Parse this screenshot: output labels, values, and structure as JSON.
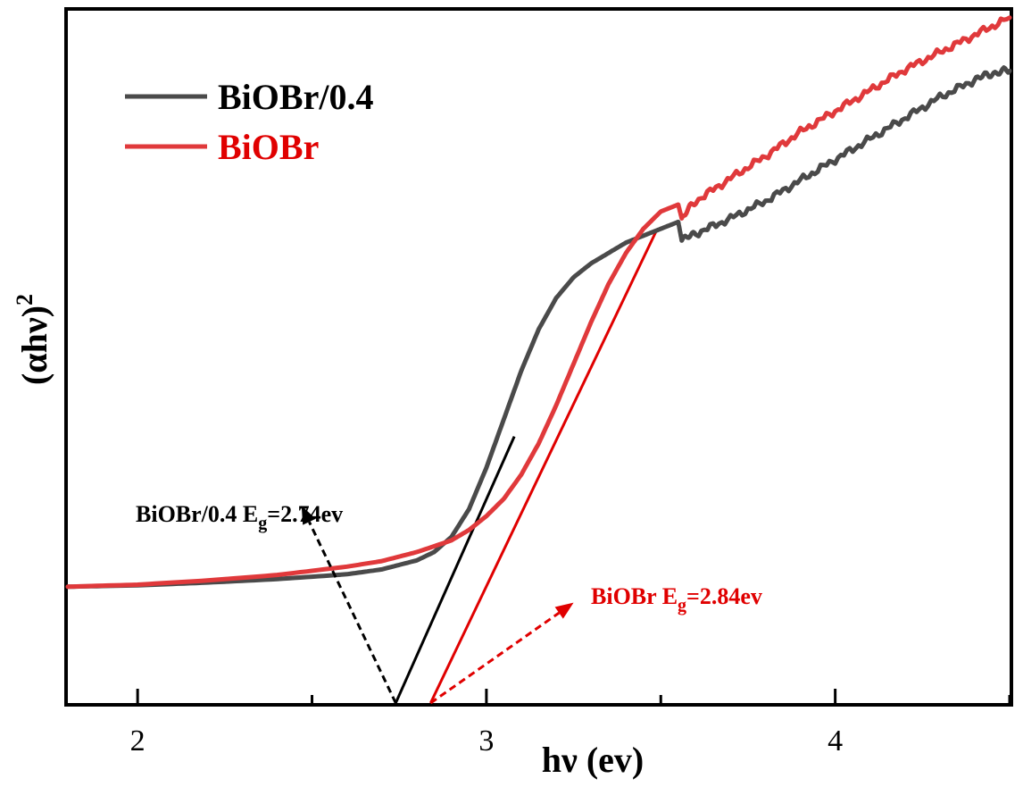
{
  "chart_data": {
    "type": "line",
    "title": "",
    "xlabel": "hν (ev)",
    "ylabel": "(αhν)",
    "ylabel_sup": "2",
    "xlim": [
      1.8,
      4.5
    ],
    "ylim": [
      0,
      100
    ],
    "xticks": [
      2,
      3,
      4
    ],
    "xtick_labels": [
      "2",
      "3",
      "4"
    ],
    "yticks_shown": false,
    "grid": false,
    "legend_position": "top-left",
    "series": [
      {
        "name": "BiOBr/0.4",
        "color": "#4a4a4a",
        "x": [
          1.8,
          2.0,
          2.2,
          2.4,
          2.6,
          2.7,
          2.8,
          2.85,
          2.9,
          2.95,
          3.0,
          3.05,
          3.1,
          3.15,
          3.2,
          3.25,
          3.3,
          3.35,
          3.4,
          3.45,
          3.5,
          3.55,
          3.56,
          3.6,
          3.7,
          3.8,
          3.9,
          4.0,
          4.1,
          4.2,
          4.3,
          4.4,
          4.45,
          4.5
        ],
        "y": [
          16.8,
          17.0,
          17.4,
          17.9,
          18.6,
          19.3,
          20.6,
          21.8,
          24.0,
          28.0,
          34.0,
          41.0,
          48.0,
          54.0,
          58.5,
          61.5,
          63.5,
          65.0,
          66.5,
          67.5,
          68.5,
          69.5,
          66.8,
          67.8,
          70.0,
          72.5,
          75.5,
          78.5,
          81.5,
          84.5,
          87.5,
          90.0,
          91.0,
          91.3
        ]
      },
      {
        "name": "BiOBr",
        "color": "#e0393b",
        "x": [
          1.8,
          2.0,
          2.2,
          2.4,
          2.6,
          2.7,
          2.8,
          2.9,
          2.95,
          3.0,
          3.05,
          3.1,
          3.15,
          3.2,
          3.25,
          3.3,
          3.35,
          3.4,
          3.45,
          3.5,
          3.55,
          3.56,
          3.6,
          3.7,
          3.8,
          3.9,
          4.0,
          4.1,
          4.2,
          4.3,
          4.4,
          4.5
        ],
        "y": [
          16.8,
          17.1,
          17.7,
          18.5,
          19.7,
          20.5,
          21.8,
          23.5,
          25.0,
          27.0,
          29.5,
          33.0,
          37.5,
          43.0,
          49.0,
          55.0,
          60.5,
          65.0,
          68.5,
          71.0,
          72.0,
          70.0,
          72.5,
          75.8,
          79.0,
          82.5,
          85.5,
          88.5,
          91.5,
          94.0,
          96.5,
          99.0
        ]
      }
    ],
    "tangent_lines": [
      {
        "series": "BiOBr/0.4",
        "color": "#000000",
        "x": [
          2.74,
          3.08
        ],
        "y": [
          0,
          38.5
        ]
      },
      {
        "series": "BiOBr",
        "color": "#e00000",
        "x": [
          2.84,
          3.49
        ],
        "y": [
          0,
          68.5
        ]
      }
    ],
    "annotations": [
      {
        "label": "BiOBr/0.4 E",
        "sub": "g",
        "value": "=2.74ev",
        "color": "#000000",
        "arrow_from": [
          2.74,
          0
        ],
        "arrow_to": [
          2.47,
          28.5
        ]
      },
      {
        "label": "BiOBr E",
        "sub": "g",
        "value": "=2.84ev",
        "color": "#e00000",
        "arrow_from": [
          2.84,
          0
        ],
        "arrow_to": [
          3.25,
          14.5
        ]
      }
    ]
  }
}
